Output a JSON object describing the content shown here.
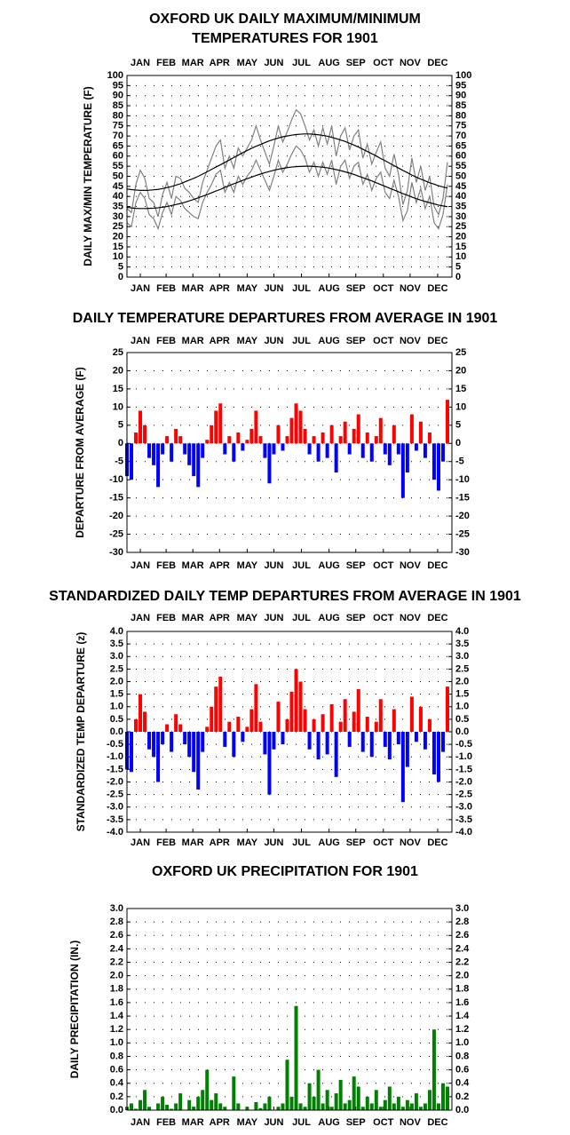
{
  "chart_data": [
    {
      "type": "line",
      "title": [
        "OXFORD UK DAILY MAXIMUM/MINIMUM",
        "TEMPERATURES FOR 1901"
      ],
      "y_label": "DAILY MAX/MIN TEMPERATURE (F)",
      "xlim": [
        1,
        366
      ],
      "xticks": [
        {
          "value": 16,
          "label": "JAN"
        },
        {
          "value": 45,
          "label": "FEB"
        },
        {
          "value": 75,
          "label": "MAR"
        },
        {
          "value": 105,
          "label": "APR"
        },
        {
          "value": 136,
          "label": "MAY"
        },
        {
          "value": 166,
          "label": "JUN"
        },
        {
          "value": 197,
          "label": "JUL"
        },
        {
          "value": 228,
          "label": "AUG"
        },
        {
          "value": 258,
          "label": "SEP"
        },
        {
          "value": 289,
          "label": "OCT"
        },
        {
          "value": 319,
          "label": "NOV"
        },
        {
          "value": 350,
          "label": "DEC"
        }
      ],
      "ylim": [
        0,
        100
      ],
      "yticks": [
        0,
        5,
        10,
        15,
        20,
        25,
        30,
        35,
        40,
        45,
        50,
        55,
        60,
        65,
        70,
        75,
        80,
        85,
        90,
        95,
        100
      ],
      "grid": true,
      "x": [
        1,
        6,
        11,
        16,
        21,
        26,
        31,
        36,
        41,
        46,
        51,
        56,
        61,
        66,
        71,
        76,
        81,
        86,
        91,
        96,
        101,
        106,
        111,
        116,
        121,
        126,
        131,
        136,
        141,
        146,
        151,
        156,
        161,
        166,
        171,
        176,
        181,
        186,
        191,
        196,
        201,
        206,
        211,
        216,
        221,
        226,
        231,
        236,
        241,
        246,
        251,
        256,
        261,
        266,
        271,
        276,
        281,
        286,
        291,
        296,
        301,
        306,
        311,
        316,
        321,
        326,
        331,
        336,
        341,
        346,
        351,
        356,
        361
      ],
      "series": [
        {
          "color": "#808080",
          "values": [
            34,
            32,
            46,
            53,
            49,
            39,
            37,
            30,
            41,
            47,
            39,
            50,
            49,
            44,
            42,
            39,
            37,
            47,
            53,
            59,
            65,
            68,
            54,
            60,
            54,
            64,
            60,
            64,
            68,
            75,
            68,
            62,
            56,
            65,
            75,
            67,
            72,
            78,
            83,
            81,
            75,
            68,
            73,
            65,
            74,
            66,
            75,
            60,
            70,
            74,
            63,
            70,
            73,
            59,
            66,
            56,
            62,
            67,
            54,
            50,
            61,
            51,
            36,
            43,
            59,
            47,
            55,
            43,
            50,
            35,
            31,
            39,
            57
          ]
        },
        {
          "color": "#808080",
          "values": [
            27,
            25,
            37,
            42,
            39,
            31,
            29,
            24,
            32,
            37,
            31,
            40,
            38,
            34,
            32,
            30,
            29,
            37,
            42,
            46,
            51,
            53,
            42,
            47,
            42,
            50,
            46,
            50,
            53,
            58,
            53,
            48,
            43,
            50,
            58,
            52,
            56,
            61,
            65,
            63,
            59,
            52,
            57,
            50,
            57,
            51,
            58,
            46,
            55,
            58,
            49,
            55,
            57,
            46,
            51,
            43,
            49,
            52,
            42,
            39,
            48,
            40,
            28,
            33,
            47,
            37,
            44,
            34,
            40,
            27,
            24,
            31,
            46
          ]
        },
        {
          "color": "#000000",
          "values": [
            43.7,
            43.4,
            43.2,
            43,
            43,
            43.1,
            43.3,
            43.5,
            43.9,
            44.4,
            44.9,
            45.6,
            46.3,
            47.2,
            48.1,
            49,
            50,
            51.1,
            52.2,
            53.4,
            54.6,
            55.7,
            56.9,
            58.1,
            59.3,
            60.5,
            61.7,
            62.8,
            63.9,
            64.9,
            65.8,
            66.7,
            67.6,
            68.3,
            69,
            69.6,
            70,
            70.4,
            70.7,
            70.9,
            71,
            71,
            70.8,
            70.6,
            70.3,
            69.9,
            69.3,
            68.7,
            68,
            67.3,
            66.4,
            65.5,
            64.5,
            63.4,
            62.3,
            61.2,
            60.1,
            58.8,
            57.7,
            56.5,
            55.3,
            54.1,
            52.9,
            51.8,
            50.6,
            49.6,
            48.6,
            47.7,
            46.8,
            46.1,
            45.3,
            44.7,
            44.2
          ]
        },
        {
          "color": "#000000",
          "values": [
            34.6,
            34.3,
            34.1,
            34,
            34,
            34.1,
            34.2,
            34.4,
            34.7,
            35,
            35.5,
            36,
            36.5,
            37.1,
            37.8,
            38.5,
            39.3,
            40.1,
            40.9,
            41.8,
            42.7,
            43.5,
            44.5,
            45.4,
            46.3,
            47.1,
            48,
            48.8,
            49.6,
            50.4,
            51.1,
            51.8,
            52.4,
            53,
            53.5,
            53.9,
            54.3,
            54.6,
            54.8,
            54.9,
            55,
            55,
            54.9,
            54.7,
            54.5,
            54.2,
            53.8,
            53.3,
            52.8,
            52.2,
            51.6,
            50.9,
            50.1,
            49.3,
            48.5,
            47.7,
            46.8,
            45.9,
            45,
            44.1,
            43.2,
            42.3,
            41.4,
            40.6,
            39.7,
            38.9,
            38.2,
            37.5,
            36.9,
            36.3,
            35.7,
            35.3,
            34.9
          ]
        }
      ]
    },
    {
      "type": "bar",
      "title": "DAILY TEMPERATURE DEPARTURES FROM AVERAGE IN 1901",
      "y_label": "DEPARTURE FROM AVERAGE (F)",
      "xlim": [
        1,
        366
      ],
      "xticks": [
        {
          "value": 16,
          "label": "JAN"
        },
        {
          "value": 45,
          "label": "FEB"
        },
        {
          "value": 75,
          "label": "MAR"
        },
        {
          "value": 105,
          "label": "APR"
        },
        {
          "value": 136,
          "label": "MAY"
        },
        {
          "value": 166,
          "label": "JUN"
        },
        {
          "value": 197,
          "label": "JUL"
        },
        {
          "value": 228,
          "label": "AUG"
        },
        {
          "value": 258,
          "label": "SEP"
        },
        {
          "value": 289,
          "label": "OCT"
        },
        {
          "value": 319,
          "label": "NOV"
        },
        {
          "value": 350,
          "label": "DEC"
        }
      ],
      "ylim": [
        -30,
        25
      ],
      "yticks": [
        -30,
        -25,
        -20,
        -15,
        -10,
        -5,
        0,
        5,
        10,
        15,
        20,
        25
      ],
      "grid": true,
      "colors": {
        "positive": "#ff0000",
        "negative": "#0000ff"
      },
      "x": [
        1,
        6,
        11,
        16,
        21,
        26,
        31,
        36,
        41,
        46,
        51,
        56,
        61,
        66,
        71,
        76,
        81,
        86,
        91,
        96,
        101,
        106,
        111,
        116,
        121,
        126,
        131,
        136,
        141,
        146,
        151,
        156,
        161,
        166,
        171,
        176,
        181,
        186,
        191,
        196,
        201,
        206,
        211,
        216,
        221,
        226,
        231,
        236,
        241,
        246,
        251,
        256,
        261,
        266,
        271,
        276,
        281,
        286,
        291,
        296,
        301,
        306,
        311,
        316,
        321,
        326,
        331,
        336,
        341,
        346,
        351,
        356,
        361
      ],
      "values": [
        -9,
        -10,
        3,
        9,
        5,
        -4,
        -6,
        -12,
        -3,
        2,
        -5,
        4,
        2,
        -3,
        -6,
        -9,
        -12,
        -4,
        1,
        5,
        9,
        11,
        -3,
        2,
        -5,
        3,
        -2,
        1,
        4,
        9,
        2,
        -4,
        -11,
        -3,
        5,
        -2,
        2,
        7,
        11,
        9,
        4,
        -3,
        2,
        -5,
        3,
        -4,
        5,
        -8,
        2,
        6,
        -3,
        4,
        8,
        -4,
        3,
        -5,
        2,
        7,
        -3,
        -6,
        5,
        -3,
        -15,
        -8,
        8,
        -2,
        6,
        -4,
        3,
        -10,
        -13,
        -5,
        12
      ]
    },
    {
      "type": "bar",
      "title": "STANDARDIZED DAILY TEMP DEPARTURES FROM AVERAGE IN 1901",
      "y_label": "STANDARDIZED TEMP DEPARTURE (z)",
      "xlim": [
        1,
        366
      ],
      "xticks": [
        {
          "value": 16,
          "label": "JAN"
        },
        {
          "value": 45,
          "label": "FEB"
        },
        {
          "value": 75,
          "label": "MAR"
        },
        {
          "value": 105,
          "label": "APR"
        },
        {
          "value": 136,
          "label": "MAY"
        },
        {
          "value": 166,
          "label": "JUN"
        },
        {
          "value": 197,
          "label": "JUL"
        },
        {
          "value": 228,
          "label": "AUG"
        },
        {
          "value": 258,
          "label": "SEP"
        },
        {
          "value": 289,
          "label": "OCT"
        },
        {
          "value": 319,
          "label": "NOV"
        },
        {
          "value": 350,
          "label": "DEC"
        }
      ],
      "ylim": [
        -4,
        4
      ],
      "yticks": [
        {
          "value": -4,
          "label": "-4.0"
        },
        -3.5,
        {
          "value": -3,
          "label": "-3.0"
        },
        -2.5,
        {
          "value": -2,
          "label": "-2.0"
        },
        -1.5,
        {
          "value": -1,
          "label": "-1.0"
        },
        -0.5,
        {
          "value": 0,
          "label": "0.0"
        },
        0.5,
        {
          "value": 1,
          "label": "1.0"
        },
        1.5,
        {
          "value": 2,
          "label": "2.0"
        },
        2.5,
        {
          "value": 3,
          "label": "3.0"
        },
        3.5,
        {
          "value": 4,
          "label": "4.0"
        }
      ],
      "grid": true,
      "colors": {
        "positive": "#ff0000",
        "negative": "#0000ff"
      },
      "x": [
        1,
        6,
        11,
        16,
        21,
        26,
        31,
        36,
        41,
        46,
        51,
        56,
        61,
        66,
        71,
        76,
        81,
        86,
        91,
        96,
        101,
        106,
        111,
        116,
        121,
        126,
        131,
        136,
        141,
        146,
        151,
        156,
        161,
        166,
        171,
        176,
        181,
        186,
        191,
        196,
        201,
        206,
        211,
        216,
        221,
        226,
        231,
        236,
        241,
        246,
        251,
        256,
        261,
        266,
        271,
        276,
        281,
        286,
        291,
        296,
        301,
        306,
        311,
        316,
        321,
        326,
        331,
        336,
        341,
        346,
        351,
        356,
        361
      ],
      "values": [
        -1.5,
        -1.6,
        0.5,
        1.5,
        0.8,
        -0.7,
        -1.0,
        -2.0,
        -0.5,
        0.3,
        -0.8,
        0.7,
        0.3,
        -0.5,
        -1.0,
        -1.6,
        -2.3,
        -0.8,
        0.2,
        1.0,
        1.8,
        2.2,
        -0.6,
        0.4,
        -1.0,
        0.6,
        -0.4,
        0.2,
        0.9,
        1.9,
        0.4,
        -0.9,
        -2.5,
        -0.7,
        1.2,
        -0.5,
        0.5,
        1.6,
        2.5,
        2.0,
        0.9,
        -0.7,
        0.5,
        -1.1,
        0.7,
        -0.9,
        1.1,
        -1.8,
        0.4,
        1.3,
        -0.6,
        0.8,
        1.7,
        -0.8,
        0.6,
        -1.0,
        0.4,
        1.3,
        -0.6,
        -1.1,
        0.9,
        -0.5,
        -2.8,
        -1.4,
        1.4,
        -0.4,
        1.0,
        -0.7,
        0.5,
        -1.7,
        -2.0,
        -0.8,
        1.8
      ]
    },
    {
      "type": "bar",
      "title": "OXFORD UK PRECIPITATION FOR 1901",
      "y_label": "DAILY PRECIPITATION (IN.)",
      "xlim": [
        1,
        366
      ],
      "xticks": [
        {
          "value": 16,
          "label": "JAN"
        },
        {
          "value": 45,
          "label": "FEB"
        },
        {
          "value": 75,
          "label": "MAR"
        },
        {
          "value": 105,
          "label": "APR"
        },
        {
          "value": 136,
          "label": "MAY"
        },
        {
          "value": 166,
          "label": "JUN"
        },
        {
          "value": 197,
          "label": "JUL"
        },
        {
          "value": 228,
          "label": "AUG"
        },
        {
          "value": 258,
          "label": "SEP"
        },
        {
          "value": 289,
          "label": "OCT"
        },
        {
          "value": 319,
          "label": "NOV"
        },
        {
          "value": 350,
          "label": "DEC"
        }
      ],
      "ylim": [
        0,
        3
      ],
      "yticks": [
        {
          "value": 0,
          "label": "0.0"
        },
        0.2,
        0.4,
        0.6,
        0.8,
        {
          "value": 1,
          "label": "1.0"
        },
        1.2,
        1.4,
        1.6,
        1.8,
        {
          "value": 2,
          "label": "2.0"
        },
        2.2,
        2.4,
        2.6,
        2.8,
        {
          "value": 3,
          "label": "3.0"
        }
      ],
      "grid": true,
      "color": "#008000",
      "x": [
        1,
        6,
        11,
        16,
        21,
        26,
        31,
        36,
        41,
        46,
        51,
        56,
        61,
        66,
        71,
        76,
        81,
        86,
        91,
        96,
        101,
        106,
        111,
        116,
        121,
        126,
        131,
        136,
        141,
        146,
        151,
        156,
        161,
        166,
        171,
        176,
        181,
        186,
        191,
        196,
        201,
        206,
        211,
        216,
        221,
        226,
        231,
        236,
        241,
        246,
        251,
        256,
        261,
        266,
        271,
        276,
        281,
        286,
        291,
        296,
        301,
        306,
        311,
        316,
        321,
        326,
        331,
        336,
        341,
        346,
        351,
        356,
        361
      ],
      "values": [
        0.05,
        0.1,
        0.02,
        0.15,
        0.3,
        0.05,
        0,
        0.1,
        0.2,
        0.08,
        0.02,
        0.1,
        0.25,
        0,
        0.15,
        0.05,
        0.2,
        0.3,
        0.6,
        0.15,
        0.25,
        0.1,
        0.05,
        0,
        0.5,
        0.1,
        0,
        0.05,
        0,
        0.12,
        0.03,
        0.1,
        0.2,
        0,
        0.05,
        0.1,
        0.75,
        0.2,
        1.55,
        0.1,
        0.05,
        0.4,
        0.2,
        0.6,
        0.1,
        0.3,
        0.05,
        0.25,
        0.45,
        0.1,
        0.15,
        0.5,
        0.35,
        0.05,
        0.2,
        0.1,
        0.3,
        0.05,
        0.15,
        0.35,
        0.1,
        0.2,
        0.05,
        0.15,
        0.1,
        0.25,
        0.05,
        0.1,
        0.3,
        1.2,
        0.1,
        0.4,
        0.35
      ]
    }
  ]
}
